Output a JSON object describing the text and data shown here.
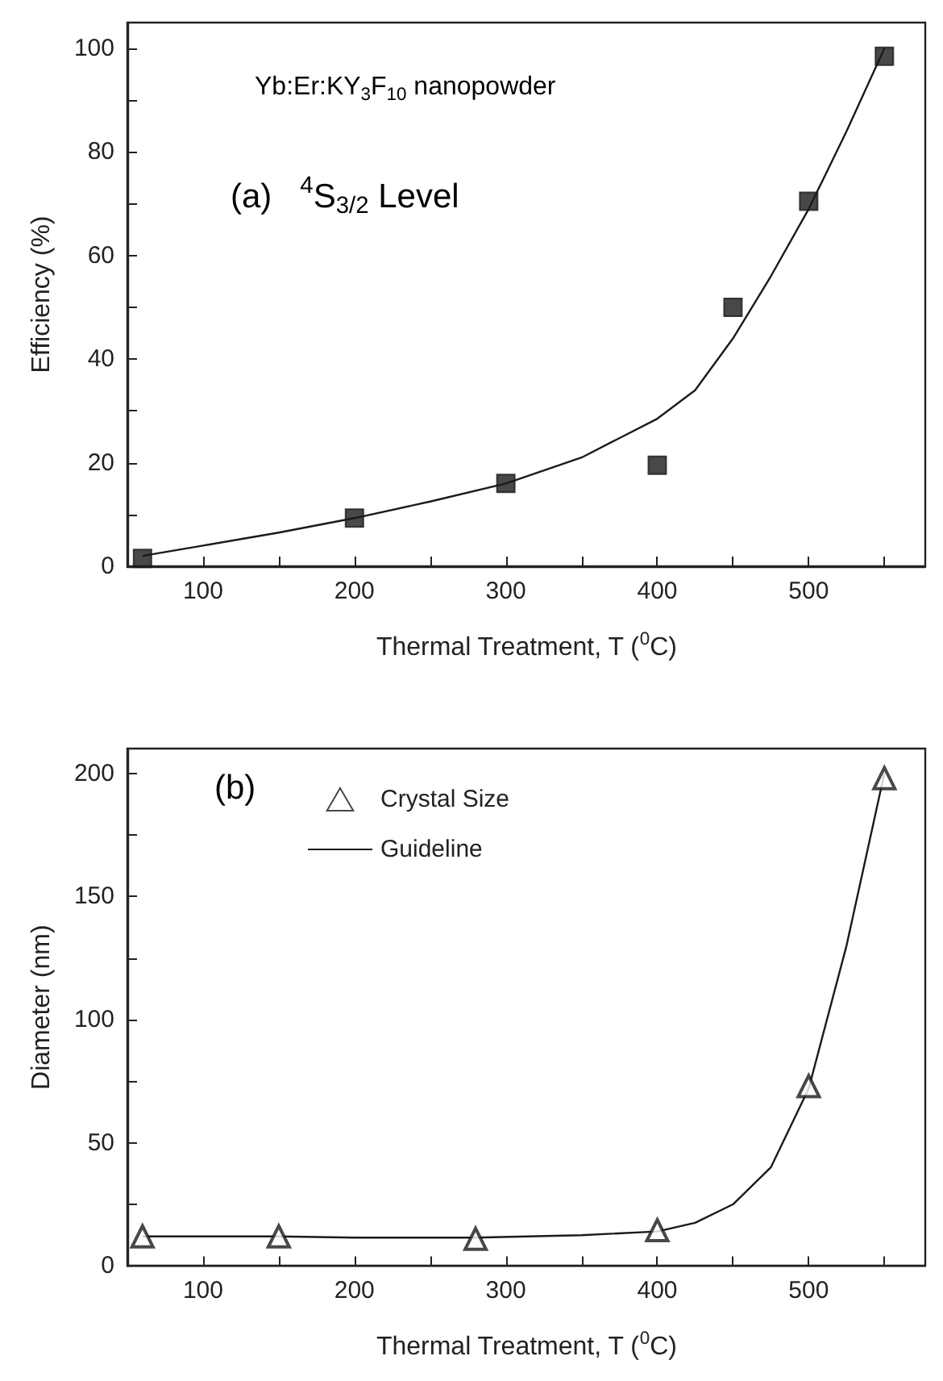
{
  "chart_data": [
    {
      "type": "scatter",
      "xlabel": "Thermal Treatment, T ($^{0}$C)",
      "ylabel": "Efficiency (%)",
      "annotations": [
        "Yb:Er:KY$_{3}$F$_{10}$ nanopowder",
        "(a)   $^{4}$S$_{3/2}$ Level"
      ],
      "xlim": [
        50,
        577
      ],
      "xticks": [
        100,
        {
          "value": 150,
          "label": null
        },
        200,
        {
          "value": 250,
          "label": null
        },
        300,
        {
          "value": 350,
          "label": null
        },
        400,
        {
          "value": 450,
          "label": null
        },
        500,
        {
          "value": 550,
          "label": null
        }
      ],
      "ylim": [
        0,
        105
      ],
      "yticks": [
        0,
        {
          "value": 10,
          "label": null
        },
        20,
        {
          "value": 30,
          "label": null
        },
        40,
        {
          "value": 50,
          "label": null
        },
        60,
        {
          "value": 70,
          "label": null
        },
        80,
        {
          "value": 90,
          "label": null
        },
        100
      ],
      "grid": false,
      "legend": false,
      "series": [
        {
          "type": "scatter",
          "marker": "square",
          "color": "#1a1a1a",
          "x": [
            60,
            200,
            300,
            400,
            450,
            500,
            550
          ],
          "values": [
            1.5,
            9.3,
            16,
            19.5,
            50,
            70.5,
            98.5
          ]
        },
        {
          "type": "line",
          "marker": "none",
          "line_style": "solid",
          "color": "#1a1a1a",
          "x": [
            60,
            100,
            150,
            200,
            250,
            300,
            350,
            400,
            425,
            450,
            475,
            500,
            525,
            550
          ],
          "values": [
            2,
            4,
            6.5,
            9.3,
            12.5,
            16,
            21,
            28.5,
            34,
            44,
            56,
            69,
            84,
            100
          ]
        }
      ]
    },
    {
      "type": "scatter",
      "xlabel": "Thermal Treatment, T ($^{0}$C)",
      "ylabel": "Diameter (nm)",
      "annotations": [
        "(b)"
      ],
      "xlim": [
        50,
        577
      ],
      "xticks": [
        100,
        {
          "value": 150,
          "label": null
        },
        200,
        {
          "value": 250,
          "label": null
        },
        300,
        {
          "value": 350,
          "label": null
        },
        400,
        {
          "value": 450,
          "label": null
        },
        500,
        {
          "value": 550,
          "label": null
        }
      ],
      "ylim": [
        0,
        210
      ],
      "yticks": [
        0,
        {
          "value": 25,
          "label": null
        },
        50,
        {
          "value": 75,
          "label": null
        },
        100,
        {
          "value": 125,
          "label": null
        },
        150,
        {
          "value": 175,
          "label": null
        },
        200
      ],
      "grid": false,
      "legend": "top left",
      "series": [
        {
          "name": "Crystal Size",
          "type": "scatter",
          "marker": "triangle",
          "color": "#1a1a1a",
          "x": [
            60,
            150,
            280,
            400,
            500,
            550
          ],
          "values": [
            12,
            12,
            11,
            14.5,
            73,
            198
          ]
        },
        {
          "name": "Guideline",
          "type": "line",
          "marker": "none",
          "line_style": "solid",
          "color": "#1a1a1a",
          "x": [
            60,
            150,
            200,
            280,
            350,
            400,
            425,
            450,
            475,
            500,
            525,
            550
          ],
          "values": [
            12,
            12,
            11.5,
            11.5,
            12.5,
            14,
            17.5,
            25,
            40,
            72,
            130,
            200
          ]
        }
      ]
    }
  ]
}
